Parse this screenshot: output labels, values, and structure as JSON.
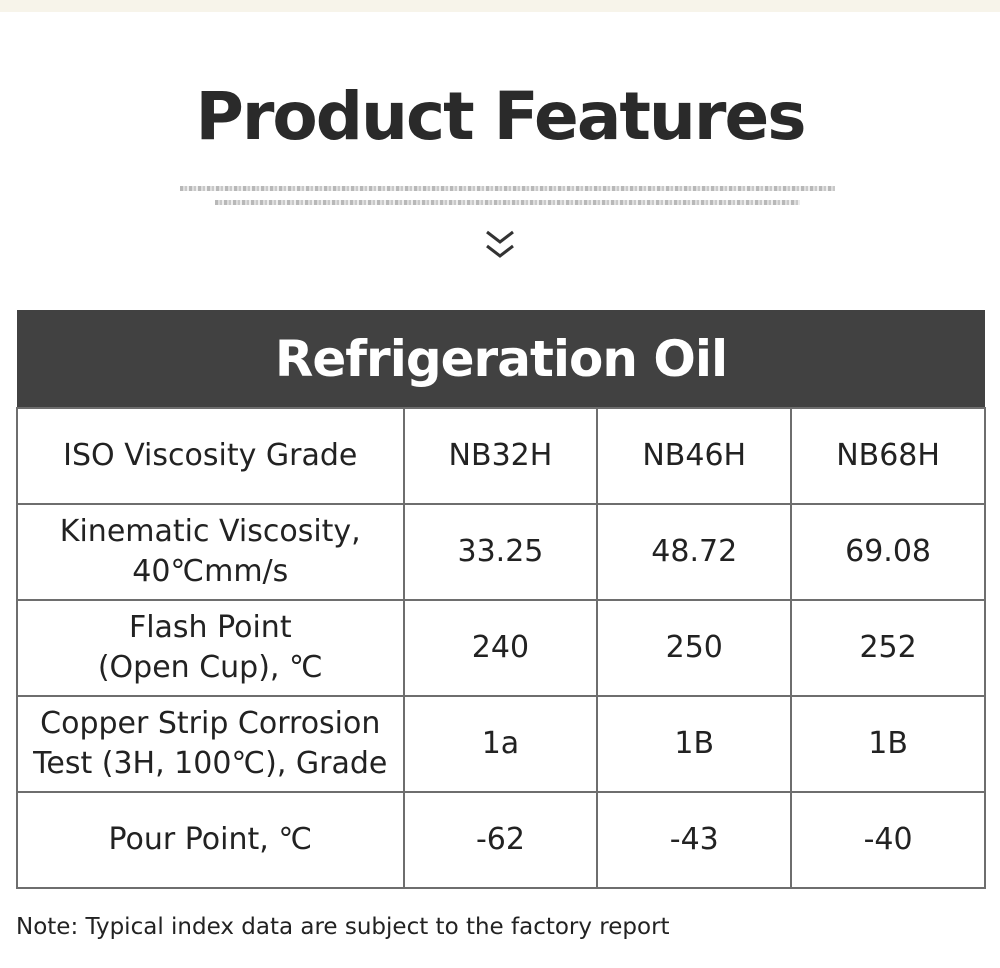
{
  "title": "Product Features",
  "icons": {
    "scroll": "double-chevron-down-icon"
  },
  "table": {
    "heading": "Refrigeration Oil",
    "rows": [
      {
        "label": "ISO Viscosity Grade",
        "values": [
          "NB32H",
          "NB46H",
          "NB68H"
        ]
      },
      {
        "label": "Kinematic Viscosity,\n40℃mm/s",
        "values": [
          "33.25",
          "48.72",
          "69.08"
        ]
      },
      {
        "label": "Flash Point\n(Open Cup), ℃",
        "values": [
          "240",
          "250",
          "252"
        ]
      },
      {
        "label": "Copper Strip Corrosion\nTest (3H, 100℃), Grade",
        "values": [
          "1a",
          "1B",
          "1B"
        ]
      },
      {
        "label": "Pour Point, ℃",
        "values": [
          "-62",
          "-43",
          "-40"
        ]
      }
    ]
  },
  "note": "Note: Typical index data are subject to the factory report"
}
